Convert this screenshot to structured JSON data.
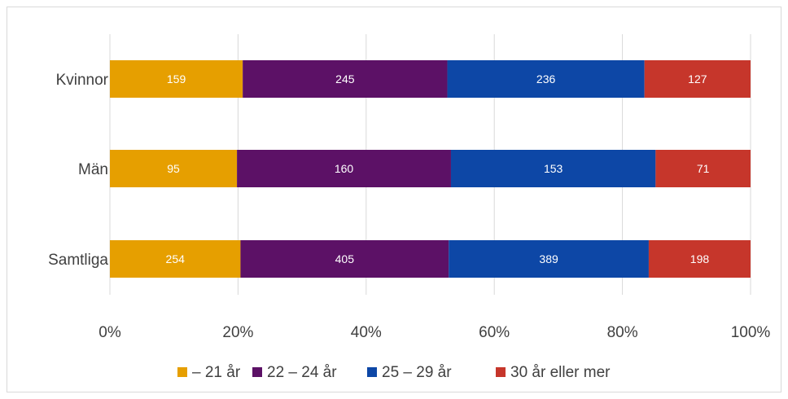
{
  "chart_data": {
    "type": "bar",
    "orientation": "horizontal",
    "stacked": "percent",
    "categories": [
      "Kvinnor",
      "Män",
      "Samtliga"
    ],
    "series": [
      {
        "name": "– 21 år",
        "color": "#E69F00",
        "values": [
          159,
          95,
          254
        ]
      },
      {
        "name": "22 – 24 år",
        "color": "#5C1166",
        "values": [
          245,
          160,
          405
        ]
      },
      {
        "name": "25 – 29 år",
        "color": "#0D47A6",
        "values": [
          236,
          153,
          389
        ]
      },
      {
        "name": "30 år eller mer",
        "color": "#C6362B",
        "values": [
          127,
          71,
          198
        ]
      }
    ],
    "xlim": [
      0,
      100
    ],
    "xticks": [
      "0%",
      "20%",
      "40%",
      "60%",
      "80%",
      "100%"
    ],
    "grid": true,
    "legend_position": "bottom"
  }
}
